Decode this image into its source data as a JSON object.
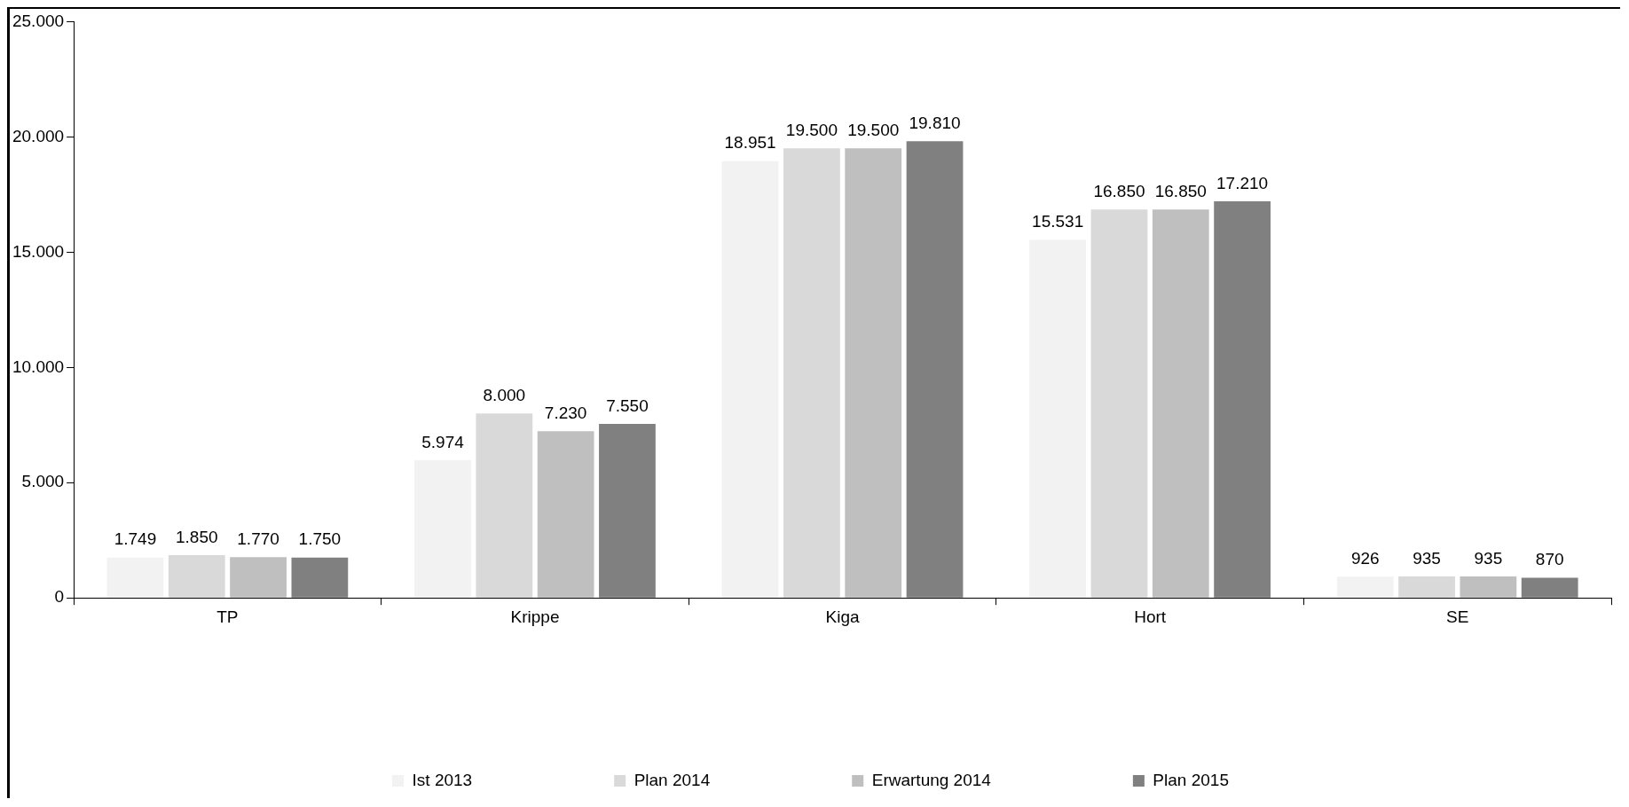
{
  "chart_data": {
    "type": "bar",
    "categories": [
      "TP",
      "Krippe",
      "Kiga",
      "Hort",
      "SE"
    ],
    "series": [
      {
        "name": "Ist 2013",
        "color": "#f2f2f2",
        "values": [
          1749,
          5974,
          18951,
          15531,
          926
        ],
        "value_labels": [
          "1.749",
          "5.974",
          "18.951",
          "15.531",
          "926"
        ]
      },
      {
        "name": "Plan 2014",
        "color": "#d9d9d9",
        "values": [
          1850,
          8000,
          19500,
          16850,
          935
        ],
        "value_labels": [
          "1.850",
          "8.000",
          "19.500",
          "16.850",
          "935"
        ]
      },
      {
        "name": "Erwartung 2014",
        "color": "#bfbfbf",
        "values": [
          1770,
          7230,
          19500,
          16850,
          935
        ],
        "value_labels": [
          "1.770",
          "7.230",
          "19.500",
          "16.850",
          "935"
        ]
      },
      {
        "name": "Plan 2015",
        "color": "#808080",
        "values": [
          1750,
          7550,
          19810,
          17210,
          870
        ],
        "value_labels": [
          "1.750",
          "7.550",
          "19.810",
          "17.210",
          "870"
        ]
      }
    ],
    "ylim": [
      0,
      25000
    ],
    "yticks": [
      {
        "value": 0,
        "label": "0"
      },
      {
        "value": 5000,
        "label": "5.000"
      },
      {
        "value": 10000,
        "label": "10.000"
      },
      {
        "value": 15000,
        "label": "15.000"
      },
      {
        "value": 20000,
        "label": "20.000"
      },
      {
        "value": 25000,
        "label": "25.000"
      }
    ],
    "grid": false,
    "legend": "bottom"
  }
}
